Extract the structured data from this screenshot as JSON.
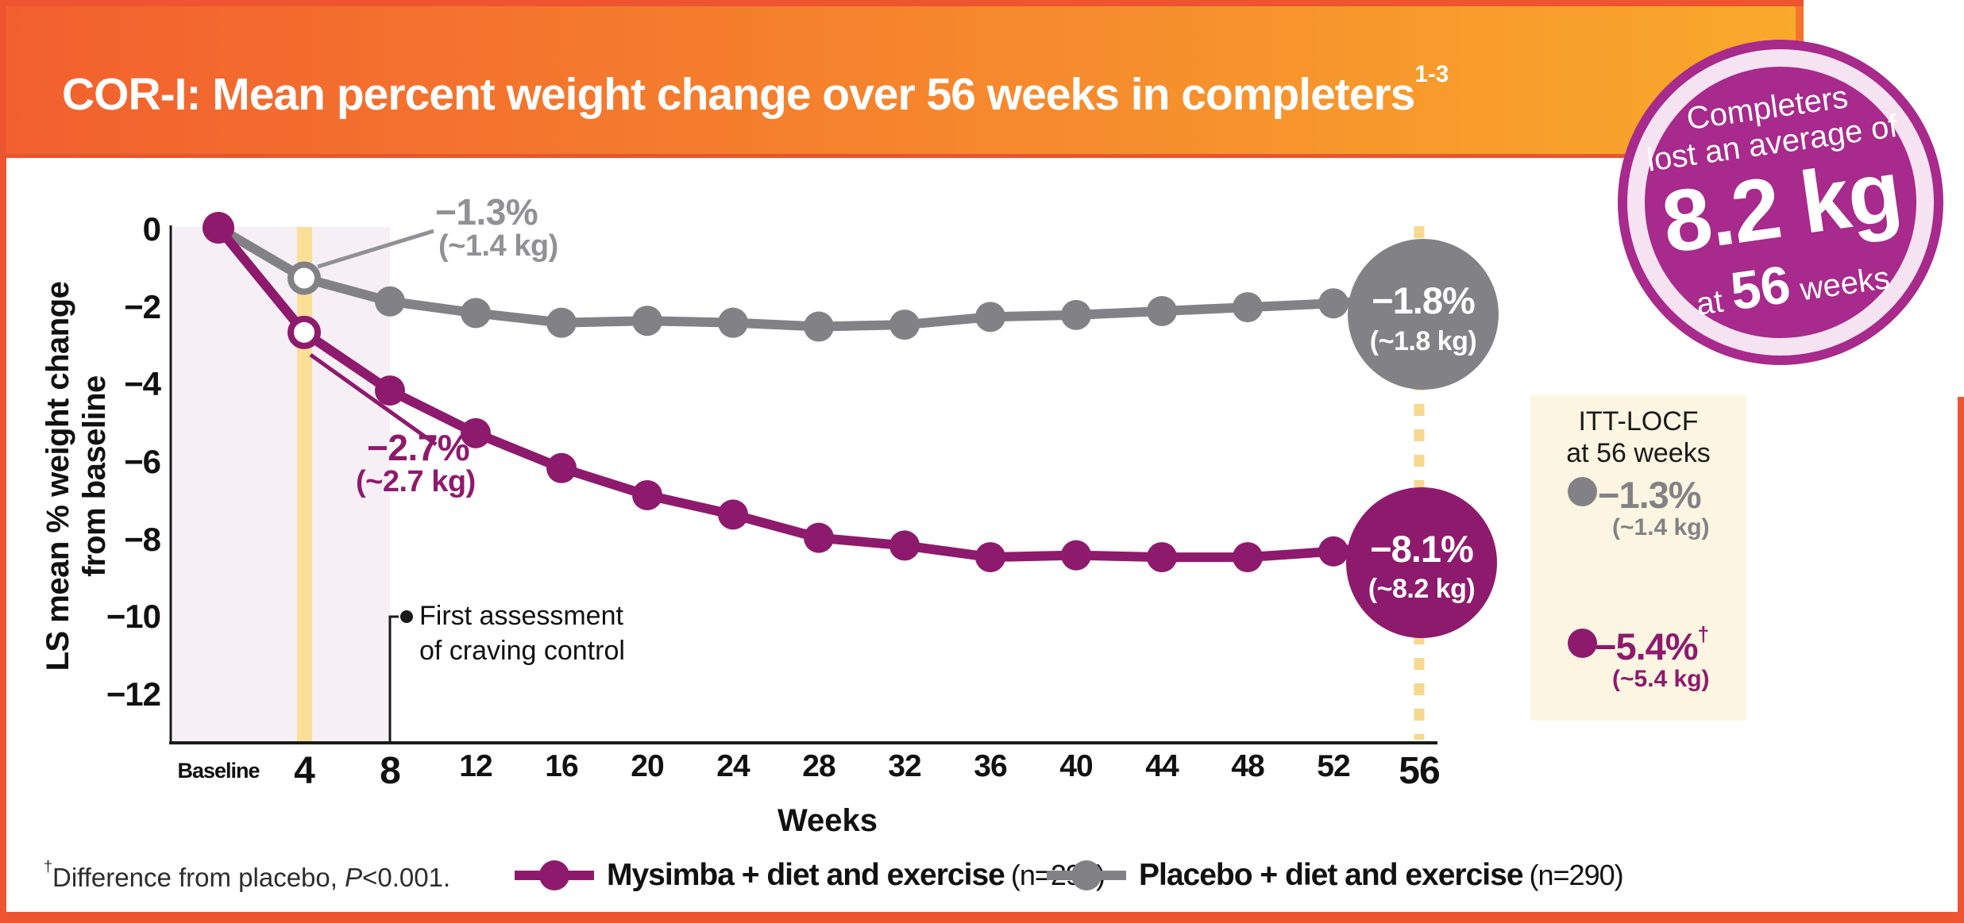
{
  "header": {
    "title": "COR-I: Mean percent weight change over 56 weeks in completers",
    "title_superscript": "1-3"
  },
  "badge": {
    "line1": "Completers",
    "line2": "lost an average of",
    "big_value": "8.2 kg",
    "at": "at",
    "weeks_number": "56",
    "weeks_word": "weeks"
  },
  "chart_data": {
    "type": "line",
    "title": "COR-I: Mean percent weight change over 56 weeks in completers",
    "xlabel": "Weeks",
    "ylabel": "LS mean % weight change from baseline",
    "ylabel_line1": "LS mean % weight change",
    "ylabel_line2": "from baseline",
    "ylim": [
      -13,
      0
    ],
    "grid": false,
    "legend_position": "bottom",
    "weeks": [
      0,
      4,
      8,
      12,
      16,
      20,
      24,
      28,
      32,
      36,
      40,
      44,
      48,
      52,
      56
    ],
    "x_ticks": [
      "Baseline",
      "4",
      "8",
      "12",
      "16",
      "20",
      "24",
      "28",
      "32",
      "36",
      "40",
      "44",
      "48",
      "52",
      "56"
    ],
    "y_ticks": [
      "0",
      "−2",
      "−4",
      "−6",
      "−8",
      "−10",
      "−12"
    ],
    "y_tick_values": [
      0,
      -2,
      -4,
      -6,
      -8,
      -10,
      -12
    ],
    "series": [
      {
        "name": "Mysimba + diet and exercise",
        "n": "(n=296)",
        "color": "#8e1a6d",
        "values": [
          0,
          -2.7,
          -4.2,
          -5.3,
          -6.2,
          -6.9,
          -7.4,
          -8.0,
          -8.2,
          -8.5,
          -8.45,
          -8.5,
          -8.5,
          -8.35,
          -8.1
        ]
      },
      {
        "name": "Placebo + diet and exercise",
        "n": "(n=290)",
        "color": "#828286",
        "values": [
          0,
          -1.3,
          -1.9,
          -2.2,
          -2.45,
          -2.4,
          -2.45,
          -2.55,
          -2.5,
          -2.3,
          -2.25,
          -2.15,
          -2.05,
          -1.95,
          -1.8
        ]
      }
    ]
  },
  "annotations": {
    "placebo_week4_pct": "−1.3%",
    "placebo_week4_kg": "(~1.4 kg)",
    "mysimba_week4_pct": "−2.7%",
    "mysimba_week4_kg": "(~2.7 kg)",
    "placebo_end_pct": "−1.8%",
    "placebo_end_kg": "(~1.8 kg)",
    "mysimba_end_pct": "−8.1%",
    "mysimba_end_kg": "(~8.2 kg)",
    "craving_line1": "First assessment",
    "craving_line2": "of craving control"
  },
  "itt_box": {
    "title_line1": "ITT-LOCF",
    "title_line2": "at 56 weeks",
    "placebo_pct": "−1.3%",
    "placebo_kg": "(~1.4 kg)",
    "mysimba_pct": "−5.4%",
    "mysimba_dagger": "†",
    "mysimba_kg": "(~5.4 kg)"
  },
  "footnote": {
    "dagger": "†",
    "text_before_p": "Difference from placebo, ",
    "p_italic": "P",
    "text_after_p": "<0.001."
  },
  "colors": {
    "frame": "#ef5430",
    "header_gradient_left": "#f2602e",
    "header_gradient_right": "#f9a92c",
    "header_bottom_line": "#e8542e",
    "header_right_strip": "#f4742c",
    "badge_purple": "#a72a8c",
    "badge_ring": "#f5e3f1",
    "mysimba_purple": "#8e1a6d",
    "placebo_gray": "#828286",
    "annotation_gray": "#919195",
    "lavender_region": "#f6f0f6",
    "yellow_band": "#fbdf97",
    "dashed_line": "#f6d88e",
    "itt_box_bg": "#fcf5e1",
    "axis_black": "#1a1a1a"
  }
}
